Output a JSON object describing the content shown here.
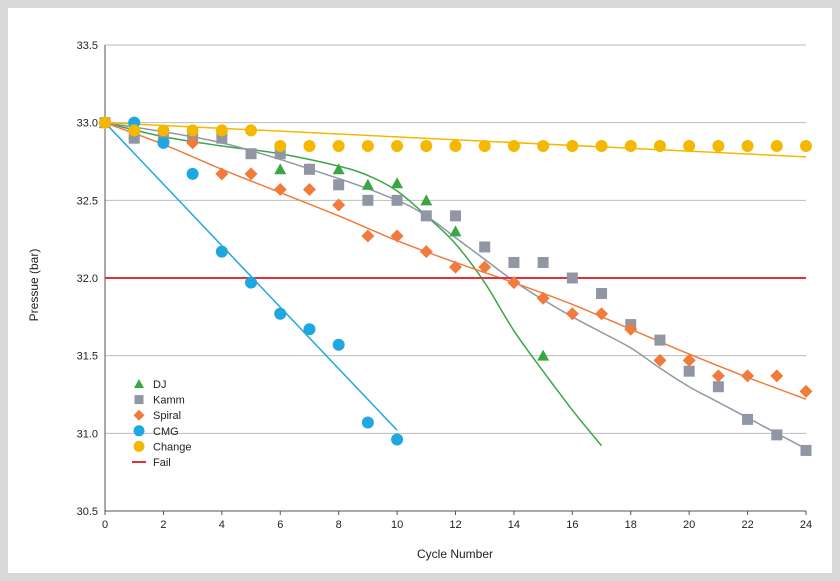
{
  "chart_data": {
    "type": "scatter",
    "xlabel": "Cycle Number",
    "ylabel": "Pressue (bar)",
    "xlim": [
      0,
      24
    ],
    "ylim": [
      30.5,
      33.5
    ],
    "xticks": [
      "0",
      "2",
      "4",
      "6",
      "8",
      "10",
      "12",
      "14",
      "16",
      "18",
      "20",
      "22",
      "24"
    ],
    "yticks": [
      "30.5",
      "31.0",
      "31.5",
      "32.0",
      "32.5",
      "33.0",
      "33.5"
    ],
    "grid": "horizontal",
    "legend_position": "bottom-left",
    "fail_threshold": 32.0,
    "series": [
      {
        "name": "DJ",
        "marker": "triangle",
        "color": "#3aa745",
        "points": [
          [
            0,
            33.0
          ],
          [
            1,
            32.93
          ],
          [
            6,
            32.7
          ],
          [
            7,
            32.7
          ],
          [
            8,
            32.7
          ],
          [
            9,
            32.6
          ],
          [
            10,
            32.61
          ],
          [
            11,
            32.5
          ],
          [
            12,
            32.3
          ],
          [
            15,
            31.5
          ]
        ],
        "trend": [
          [
            0,
            33.0
          ],
          [
            2,
            32.91
          ],
          [
            4,
            32.85
          ],
          [
            6,
            32.8
          ],
          [
            8,
            32.72
          ],
          [
            9,
            32.66
          ],
          [
            10,
            32.56
          ],
          [
            11,
            32.4
          ],
          [
            12,
            32.22
          ],
          [
            13,
            31.97
          ],
          [
            14,
            31.66
          ],
          [
            15,
            31.4
          ],
          [
            16,
            31.15
          ],
          [
            17,
            30.92
          ]
        ]
      },
      {
        "name": "Kamm",
        "marker": "square",
        "color": "#9196a5",
        "points": [
          [
            0,
            33.0
          ],
          [
            1,
            32.9
          ],
          [
            2,
            32.9
          ],
          [
            3,
            32.9
          ],
          [
            4,
            32.9
          ],
          [
            5,
            32.8
          ],
          [
            6,
            32.8
          ],
          [
            7,
            32.7
          ],
          [
            8,
            32.6
          ],
          [
            9,
            32.5
          ],
          [
            10,
            32.5
          ],
          [
            11,
            32.4
          ],
          [
            12,
            32.4
          ],
          [
            13,
            32.2
          ],
          [
            14,
            32.1
          ],
          [
            15,
            32.1
          ],
          [
            16,
            32.0
          ],
          [
            17,
            31.9
          ],
          [
            18,
            31.7
          ],
          [
            19,
            31.6
          ],
          [
            20,
            31.4
          ],
          [
            21,
            31.3
          ],
          [
            22,
            31.09
          ],
          [
            23,
            30.99
          ],
          [
            24,
            30.89
          ]
        ],
        "trend": [
          [
            0,
            33.0
          ],
          [
            4,
            32.87
          ],
          [
            8,
            32.64
          ],
          [
            10,
            32.5
          ],
          [
            11,
            32.4
          ],
          [
            12,
            32.26
          ],
          [
            13,
            32.12
          ],
          [
            14,
            31.98
          ],
          [
            15,
            31.86
          ],
          [
            16,
            31.75
          ],
          [
            17,
            31.65
          ],
          [
            18,
            31.55
          ],
          [
            19,
            31.42
          ],
          [
            20,
            31.3
          ],
          [
            21,
            31.2
          ],
          [
            22,
            31.1
          ],
          [
            23,
            31.0
          ],
          [
            24,
            30.9
          ]
        ]
      },
      {
        "name": "Spiral",
        "marker": "diamond",
        "color": "#f07b3c",
        "points": [
          [
            0,
            33.0
          ],
          [
            1,
            32.95
          ],
          [
            2,
            32.88
          ],
          [
            3,
            32.87
          ],
          [
            4,
            32.67
          ],
          [
            5,
            32.67
          ],
          [
            6,
            32.57
          ],
          [
            7,
            32.57
          ],
          [
            8,
            32.47
          ],
          [
            9,
            32.27
          ],
          [
            10,
            32.27
          ],
          [
            11,
            32.17
          ],
          [
            12,
            32.07
          ],
          [
            13,
            32.07
          ],
          [
            14,
            31.97
          ],
          [
            15,
            31.87
          ],
          [
            16,
            31.77
          ],
          [
            17,
            31.77
          ],
          [
            18,
            31.67
          ],
          [
            19,
            31.47
          ],
          [
            20,
            31.47
          ],
          [
            21,
            31.37
          ],
          [
            22,
            31.37
          ],
          [
            23,
            31.37
          ],
          [
            24,
            31.27
          ]
        ],
        "trend": [
          [
            0,
            33.0
          ],
          [
            2,
            32.86
          ],
          [
            4,
            32.7
          ],
          [
            6,
            32.55
          ],
          [
            8,
            32.4
          ],
          [
            10,
            32.24
          ],
          [
            12,
            32.1
          ],
          [
            14,
            31.97
          ],
          [
            16,
            31.83
          ],
          [
            18,
            31.67
          ],
          [
            20,
            31.51
          ],
          [
            22,
            31.36
          ],
          [
            24,
            31.22
          ]
        ]
      },
      {
        "name": "CMG",
        "marker": "circle",
        "color": "#1ea7e1",
        "points": [
          [
            0,
            33.0
          ],
          [
            1,
            33.0
          ],
          [
            2,
            32.87
          ],
          [
            3,
            32.67
          ],
          [
            4,
            32.17
          ],
          [
            5,
            31.97
          ],
          [
            6,
            31.77
          ],
          [
            7,
            31.67
          ],
          [
            8,
            31.57
          ],
          [
            9,
            31.07
          ],
          [
            10,
            30.96
          ]
        ],
        "trend": [
          [
            0,
            33.0
          ],
          [
            10,
            31.02
          ]
        ]
      },
      {
        "name": "Change",
        "marker": "circle",
        "color": "#f5b800",
        "points": [
          [
            0,
            33.0
          ],
          [
            1,
            32.95
          ],
          [
            2,
            32.95
          ],
          [
            3,
            32.95
          ],
          [
            4,
            32.95
          ],
          [
            5,
            32.95
          ],
          [
            6,
            32.85
          ],
          [
            7,
            32.85
          ],
          [
            8,
            32.85
          ],
          [
            9,
            32.85
          ],
          [
            10,
            32.85
          ],
          [
            11,
            32.85
          ],
          [
            12,
            32.85
          ],
          [
            13,
            32.85
          ],
          [
            14,
            32.85
          ],
          [
            15,
            32.85
          ],
          [
            16,
            32.85
          ],
          [
            17,
            32.85
          ],
          [
            18,
            32.85
          ],
          [
            19,
            32.85
          ],
          [
            20,
            32.85
          ],
          [
            21,
            32.85
          ],
          [
            22,
            32.85
          ],
          [
            23,
            32.85
          ],
          [
            24,
            32.85
          ]
        ],
        "trend": [
          [
            0,
            33.0
          ],
          [
            24,
            32.78
          ]
        ]
      },
      {
        "name": "Fail",
        "marker": "line",
        "color": "#e0303a",
        "points": [],
        "trend": [
          [
            0,
            32.0
          ],
          [
            24,
            32.0
          ]
        ]
      }
    ]
  }
}
